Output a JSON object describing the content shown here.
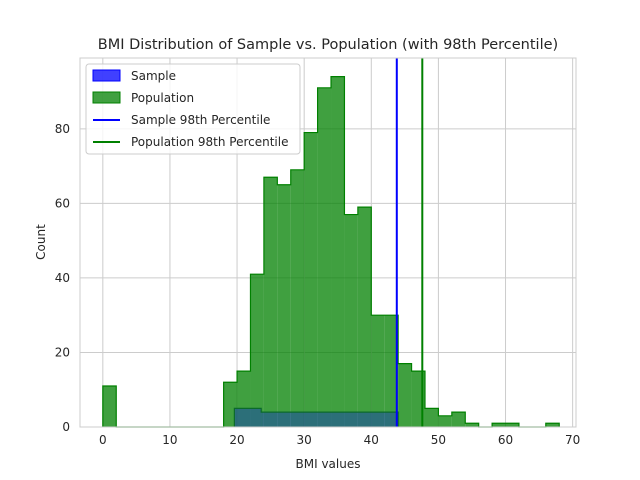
{
  "chart_data": {
    "type": "histogram",
    "title": "BMI Distribution of Sample vs. Population (with 98th Percentile)",
    "xlabel": "BMI values",
    "ylabel": "Count",
    "xlim": [
      -3.4,
      70.5
    ],
    "ylim": [
      0,
      99
    ],
    "xticks": [
      0,
      10,
      20,
      30,
      40,
      50,
      60,
      70
    ],
    "yticks": [
      0,
      20,
      40,
      60,
      80
    ],
    "grid": true,
    "legend_position": "top-left",
    "bin_width": 2.0,
    "series": [
      {
        "name": "Population",
        "color": "#008000",
        "bins": [
          {
            "x0": 0.0,
            "count": 11
          },
          {
            "x0": 2.0,
            "count": 0
          },
          {
            "x0": 4.0,
            "count": 0
          },
          {
            "x0": 6.0,
            "count": 0
          },
          {
            "x0": 8.0,
            "count": 0
          },
          {
            "x0": 10.0,
            "count": 0
          },
          {
            "x0": 12.0,
            "count": 0
          },
          {
            "x0": 14.0,
            "count": 0
          },
          {
            "x0": 16.0,
            "count": 0
          },
          {
            "x0": 18.0,
            "count": 12
          },
          {
            "x0": 20.0,
            "count": 15
          },
          {
            "x0": 22.0,
            "count": 41
          },
          {
            "x0": 24.0,
            "count": 67
          },
          {
            "x0": 26.0,
            "count": 65
          },
          {
            "x0": 28.0,
            "count": 69
          },
          {
            "x0": 30.0,
            "count": 79
          },
          {
            "x0": 32.0,
            "count": 91
          },
          {
            "x0": 34.0,
            "count": 94
          },
          {
            "x0": 36.0,
            "count": 57
          },
          {
            "x0": 38.0,
            "count": 59
          },
          {
            "x0": 40.0,
            "count": 30
          },
          {
            "x0": 42.0,
            "count": 30
          },
          {
            "x0": 44.0,
            "count": 17
          },
          {
            "x0": 46.0,
            "count": 15
          },
          {
            "x0": 48.0,
            "count": 5
          },
          {
            "x0": 50.0,
            "count": 3
          },
          {
            "x0": 52.0,
            "count": 4
          },
          {
            "x0": 54.0,
            "count": 1
          },
          {
            "x0": 56.0,
            "count": 0
          },
          {
            "x0": 58.0,
            "count": 1
          },
          {
            "x0": 60.0,
            "count": 1
          },
          {
            "x0": 62.0,
            "count": 0
          },
          {
            "x0": 64.0,
            "count": 0
          },
          {
            "x0": 66.0,
            "count": 1
          }
        ]
      },
      {
        "name": "Sample",
        "color": "#0000ff",
        "bins": [
          {
            "x0": 19.6,
            "x1": 23.6,
            "count": 5
          },
          {
            "x0": 23.6,
            "x1": 44.0,
            "count": 4
          }
        ]
      }
    ],
    "vertical_lines": [
      {
        "name": "Sample 98th Percentile",
        "x": 43.8,
        "color": "#0000ff"
      },
      {
        "name": "Population 98th Percentile",
        "x": 47.6,
        "color": "#008000"
      }
    ],
    "legend": [
      {
        "label": "Sample",
        "kind": "patch",
        "color": "#0000ff"
      },
      {
        "label": "Population",
        "kind": "patch",
        "color": "#008000"
      },
      {
        "label": "Sample 98th Percentile",
        "kind": "line",
        "color": "#0000ff"
      },
      {
        "label": "Population 98th Percentile",
        "kind": "line",
        "color": "#008000"
      }
    ]
  }
}
